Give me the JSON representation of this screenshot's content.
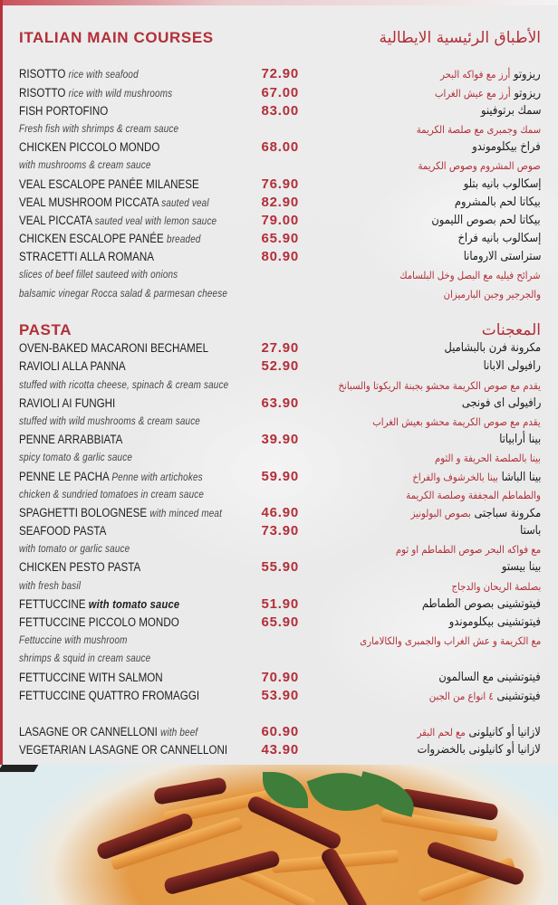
{
  "sections": [
    {
      "title_en": "ITALIAN MAIN COURSES",
      "title_ar": "الأطباق الرئيسية الايطالية",
      "rows": [
        {
          "name": "RISOTTO",
          "desc": "rice with seafood",
          "price": "72.90",
          "ar": "ريزوتو",
          "ar_desc": "أرز مع فواكه البحر"
        },
        {
          "name": "RISOTTO",
          "desc": "rice with wild mushrooms",
          "price": "67.00",
          "ar": "ريزوتو",
          "ar_desc": "أرز مع عيش الغراب"
        },
        {
          "name": "FISH PORTOFINO",
          "price": "83.00",
          "ar": "سمك برتوفينو"
        },
        {
          "note": "Fresh fish with shrimps & cream sauce",
          "ar_note": "سمك وجمبرى مع صلصة الكريمة"
        },
        {
          "name": "CHICKEN PICCOLO MONDO",
          "price": "68.00",
          "ar": "فراخ بيكلوموندو"
        },
        {
          "note": "with mushrooms & cream sauce",
          "ar_note": "صوص المشروم وصوص الكريمة"
        },
        {
          "name": "VEAL ESCALOPE PANÉE MILANESE",
          "price": "76.90",
          "ar": "إسكالوب بانيه بتلو"
        },
        {
          "name": "VEAL MUSHROOM PICCATA",
          "desc": "sauted veal",
          "price": "82.90",
          "ar": "بيكاتا لحم بالمشروم"
        },
        {
          "name": "VEAL PICCATA",
          "desc": "sauted veal with lemon sauce",
          "price": "79.00",
          "ar": "بيكاتا لحم بصوص الليمون"
        },
        {
          "name": "CHICKEN ESCALOPE PANÉE",
          "desc": "breaded",
          "price": "65.90",
          "ar": "إسكالوب بانيه فراخ"
        },
        {
          "name": "STRACETTI ALLA ROMANA",
          "price": "80.90",
          "ar": "ستراستى الارومانا"
        },
        {
          "note": "slices of beef fillet sauteed with onions",
          "ar_note": "شرائح فيليه مع البصل وخل البلسامك"
        },
        {
          "note": "balsamic vinegar Rocca salad & parmesan cheese",
          "ar_note": "والجرجير وجبن البارميزان"
        }
      ]
    },
    {
      "title_en": "PASTA",
      "title_ar": "المعجنات",
      "rows": [
        {
          "name": "OVEN-BAKED MACARONI BECHAMEL",
          "price": "27.90",
          "ar": "مكرونة فرن بالبشاميل"
        },
        {
          "name": "RAVIOLI ALLA PANNA",
          "price": "52.90",
          "ar": "رافيولى الابانا"
        },
        {
          "note": "stuffed with ricotta cheese, spinach & cream sauce",
          "ar_note": "يقدم مع صوص الكريمة محشو بجبنة الريكوتا والسبانخ"
        },
        {
          "name": "RAVIOLI AI FUNGHI",
          "price": "63.90",
          "ar": "رافيولى اى فونجى"
        },
        {
          "note": "stuffed with wild mushrooms & cream sauce",
          "ar_note": "يقدم مع صوص الكريمة محشو بعيش الغراب"
        },
        {
          "name": "PENNE ARRABBIATA",
          "price": "39.90",
          "ar": "بينا أرابياتا"
        },
        {
          "note": "spicy tomato & garlic sauce",
          "ar_note": "بينا بالصلصة الحريفة و الثوم"
        },
        {
          "name": "PENNE LE PACHA",
          "desc": "Penne with artichokes",
          "price": "59.90",
          "ar": "بينا الباشا",
          "ar_desc": "بينا بالخرشوف والفراخ"
        },
        {
          "note": "chicken & sundried tomatoes in cream sauce",
          "ar_note": "والطماطم المجففة وصلصة الكريمة"
        },
        {
          "name": "SPAGHETTI BOLOGNESE",
          "desc": "with minced meat",
          "price": "46.90",
          "ar": "مكرونة سباجتى",
          "ar_desc": "بصوص البولونيز"
        },
        {
          "name": "SEAFOOD PASTA",
          "price": "73.90",
          "ar": "باستا"
        },
        {
          "note": "with tomato or garlic sauce",
          "ar_note": "مع فواكه البحر صوص الطماطم او ثوم"
        },
        {
          "name": "CHICKEN PESTO PASTA",
          "price": "55.90",
          "ar": "بينا بيستو"
        },
        {
          "note": "with fresh basil",
          "ar_note": "بصلصة الريحان والدجاج"
        },
        {
          "name": "FETTUCCINE",
          "desc_bold_italic": "with tomato sauce",
          "price": "51.90",
          "ar": "فيتوتشينى بصوص الطماطم"
        },
        {
          "name": "FETTUCCINE PICCOLO MONDO",
          "price": "65.90",
          "ar": "فيتوتشينى بيكلوموندو"
        },
        {
          "note": "Fettuccine with mushroom",
          "ar_note": "مع الكريمة و عش الغراب والجمبرى والكالامارى"
        },
        {
          "note": " shrimps & squid in cream sauce"
        },
        {
          "name": "FETTUCCINE WITH SALMON",
          "price": "70.90",
          "ar": "فيتوتشينى مع السالمون"
        },
        {
          "name": "FETTUCCINE QUATTRO FROMAGGI",
          "price": "53.90",
          "ar": "فيتوتشينى",
          "ar_desc": "٤ انواع من الجبن"
        },
        {
          "spacer": true
        },
        {
          "name": "LASAGNE OR CANNELLONI",
          "desc": "with beef",
          "price": "60.90",
          "ar": "لازانيا أو كانيلونى",
          "ar_desc": "مع لحم البقر"
        },
        {
          "name": "VEGETARIAN LASAGNE OR CANNELLONI",
          "price": "43.90",
          "ar": "لازانيا أو كانيلونى بالخضروات"
        }
      ]
    }
  ],
  "colors": {
    "accent": "#b32e38",
    "text": "#1e1e1e",
    "background": "#ebebeb"
  },
  "photo": "penne-pasta-with-sundried-tomatoes-image"
}
